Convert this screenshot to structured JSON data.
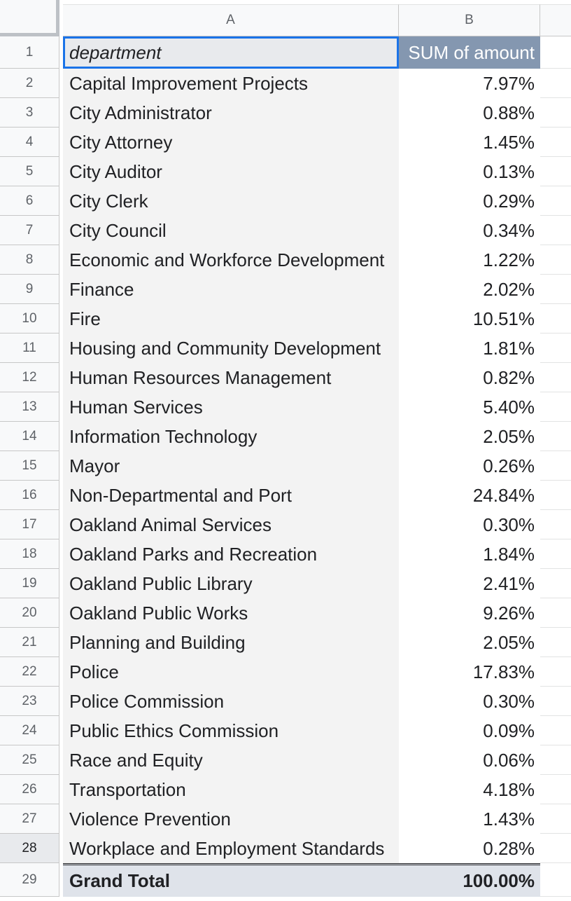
{
  "columns": {
    "a": "A",
    "b": "B"
  },
  "header_row": {
    "num": "1",
    "department": "department",
    "amount": "SUM of amount"
  },
  "rows": [
    {
      "num": "2",
      "department": "Capital Improvement Projects",
      "amount": "7.97%"
    },
    {
      "num": "3",
      "department": "City Administrator",
      "amount": "0.88%"
    },
    {
      "num": "4",
      "department": "City Attorney",
      "amount": "1.45%"
    },
    {
      "num": "5",
      "department": "City Auditor",
      "amount": "0.13%"
    },
    {
      "num": "6",
      "department": "City Clerk",
      "amount": "0.29%"
    },
    {
      "num": "7",
      "department": "City Council",
      "amount": "0.34%"
    },
    {
      "num": "8",
      "department": "Economic and Workforce Development",
      "amount": "1.22%"
    },
    {
      "num": "9",
      "department": "Finance",
      "amount": "2.02%"
    },
    {
      "num": "10",
      "department": "Fire",
      "amount": "10.51%"
    },
    {
      "num": "11",
      "department": "Housing and Community Development",
      "amount": "1.81%"
    },
    {
      "num": "12",
      "department": "Human Resources Management",
      "amount": "0.82%"
    },
    {
      "num": "13",
      "department": "Human Services",
      "amount": "5.40%"
    },
    {
      "num": "14",
      "department": "Information Technology",
      "amount": "2.05%"
    },
    {
      "num": "15",
      "department": "Mayor",
      "amount": "0.26%"
    },
    {
      "num": "16",
      "department": "Non-Departmental and Port",
      "amount": "24.84%"
    },
    {
      "num": "17",
      "department": "Oakland Animal Services",
      "amount": "0.30%"
    },
    {
      "num": "18",
      "department": "Oakland Parks and Recreation",
      "amount": "1.84%"
    },
    {
      "num": "19",
      "department": "Oakland Public Library",
      "amount": "2.41%"
    },
    {
      "num": "20",
      "department": "Oakland Public Works",
      "amount": "9.26%"
    },
    {
      "num": "21",
      "department": "Planning and Building",
      "amount": "2.05%"
    },
    {
      "num": "22",
      "department": "Police",
      "amount": "17.83%"
    },
    {
      "num": "23",
      "department": "Police Commission",
      "amount": "0.30%"
    },
    {
      "num": "24",
      "department": "Public Ethics Commission",
      "amount": "0.09%"
    },
    {
      "num": "25",
      "department": "Race and Equity",
      "amount": "0.06%"
    },
    {
      "num": "26",
      "department": "Transportation",
      "amount": "4.18%"
    },
    {
      "num": "27",
      "department": "Violence Prevention",
      "amount": "1.43%"
    },
    {
      "num": "28",
      "department": "Workplace and Employment Standards",
      "amount": "0.28%"
    }
  ],
  "total_row": {
    "num": "29",
    "department": "Grand Total",
    "amount": "100.00%"
  },
  "colors": {
    "selection": "#1a73e8",
    "header_value_bg": "#8497b0",
    "total_bg": "#dfe3ea",
    "pivot_row_bg": "#f3f3f3"
  }
}
